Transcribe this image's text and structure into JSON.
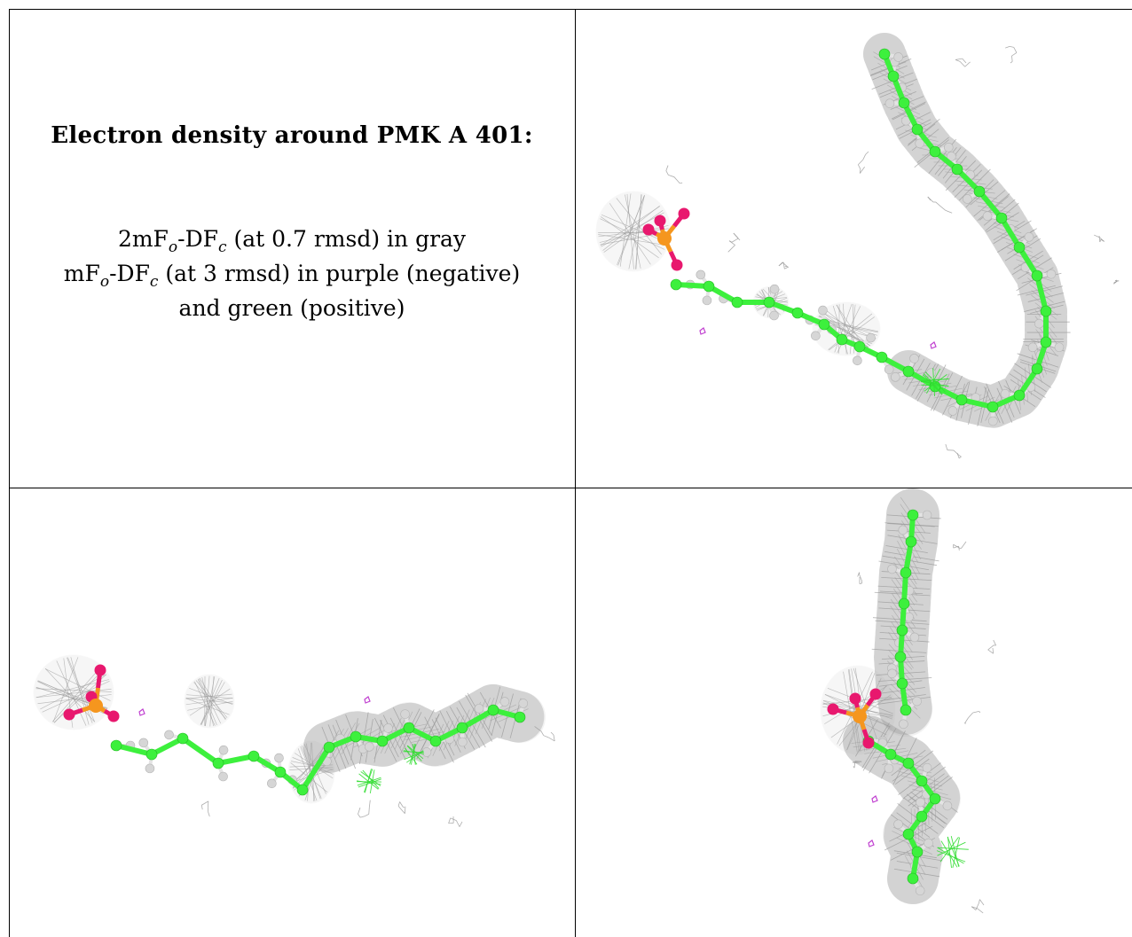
{
  "caption": {
    "title": "Electron density around PMK A 401:",
    "line1": {
      "a": "2mF",
      "a_sub": "o",
      "b": "-DF",
      "b_sub": "c",
      "rest": " (at 0.7 rmsd) in gray"
    },
    "line2": {
      "a": "mF",
      "a_sub": "o",
      "b": "-DF",
      "b_sub": "c",
      "rest": " (at 3 rmsd) in purple (negative)"
    },
    "line3": "and green (positive)"
  },
  "colors": {
    "mesh": "#9a9a9a",
    "carbon": "#3df03d",
    "hydrogen": "#d6d6d6",
    "oxygen": "#e8186e",
    "phosphorus": "#f5961e",
    "negative_density": "#c040d0",
    "positive_density": "#33dd33"
  },
  "panels": [
    {
      "view": "view-1"
    },
    {
      "view": "view-2"
    },
    {
      "view": "view-3"
    }
  ]
}
